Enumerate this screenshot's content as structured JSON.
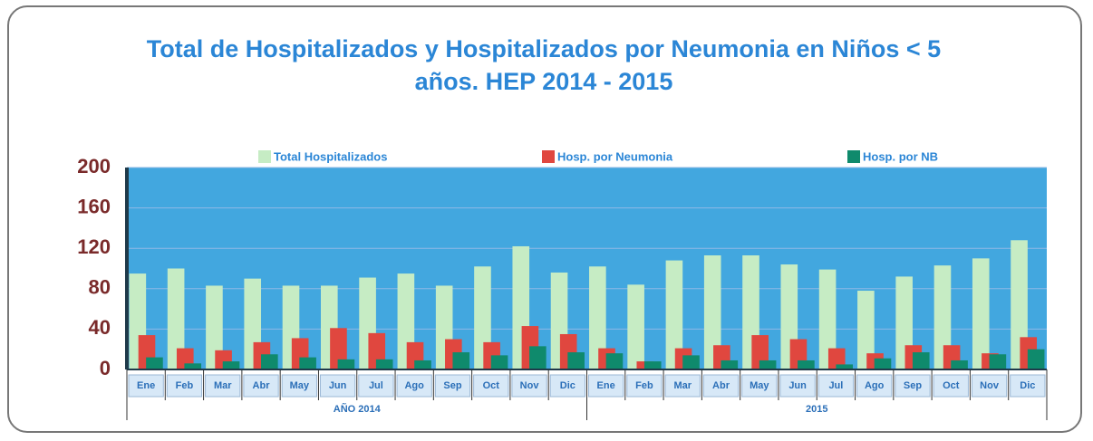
{
  "chart_data": {
    "type": "bar",
    "title": "Total de Hospitalizados y Hospitalizados por Neumonia en Niños < 5 años. HEP 2014 - 2015",
    "categories": [
      "Ene",
      "Feb",
      "Mar",
      "Abr",
      "May",
      "Jun",
      "Jul",
      "Ago",
      "Sep",
      "Oct",
      "Nov",
      "Dic",
      "Ene",
      "Feb",
      "Mar",
      "Abr",
      "May",
      "Jun",
      "Jul",
      "Ago",
      "Sep",
      "Oct",
      "Nov",
      "Dic"
    ],
    "groups": [
      "AÑO 2014",
      "2015"
    ],
    "series": [
      {
        "name": "Total Hospitalizados",
        "color": "#c6ecc4",
        "values": [
          95,
          100,
          83,
          90,
          83,
          83,
          91,
          95,
          83,
          102,
          122,
          96,
          102,
          84,
          108,
          113,
          113,
          104,
          99,
          78,
          92,
          103,
          110,
          128
        ]
      },
      {
        "name": "Hosp. por Neumonia",
        "color": "#e0473f",
        "values": [
          34,
          21,
          19,
          27,
          31,
          41,
          36,
          27,
          30,
          27,
          43,
          35,
          21,
          8,
          21,
          24,
          34,
          30,
          21,
          16,
          24,
          24,
          16,
          32
        ]
      },
      {
        "name": "Hosp. por NB",
        "color": "#0f8a6c",
        "values": [
          12,
          6,
          8,
          15,
          12,
          10,
          10,
          9,
          17,
          14,
          23,
          17,
          16,
          8,
          14,
          9,
          9,
          9,
          5,
          11,
          17,
          9,
          15,
          20
        ]
      }
    ],
    "ylim": [
      0,
      200
    ],
    "yticks": [
      0,
      40,
      80,
      120,
      160,
      200
    ],
    "grid": true
  }
}
